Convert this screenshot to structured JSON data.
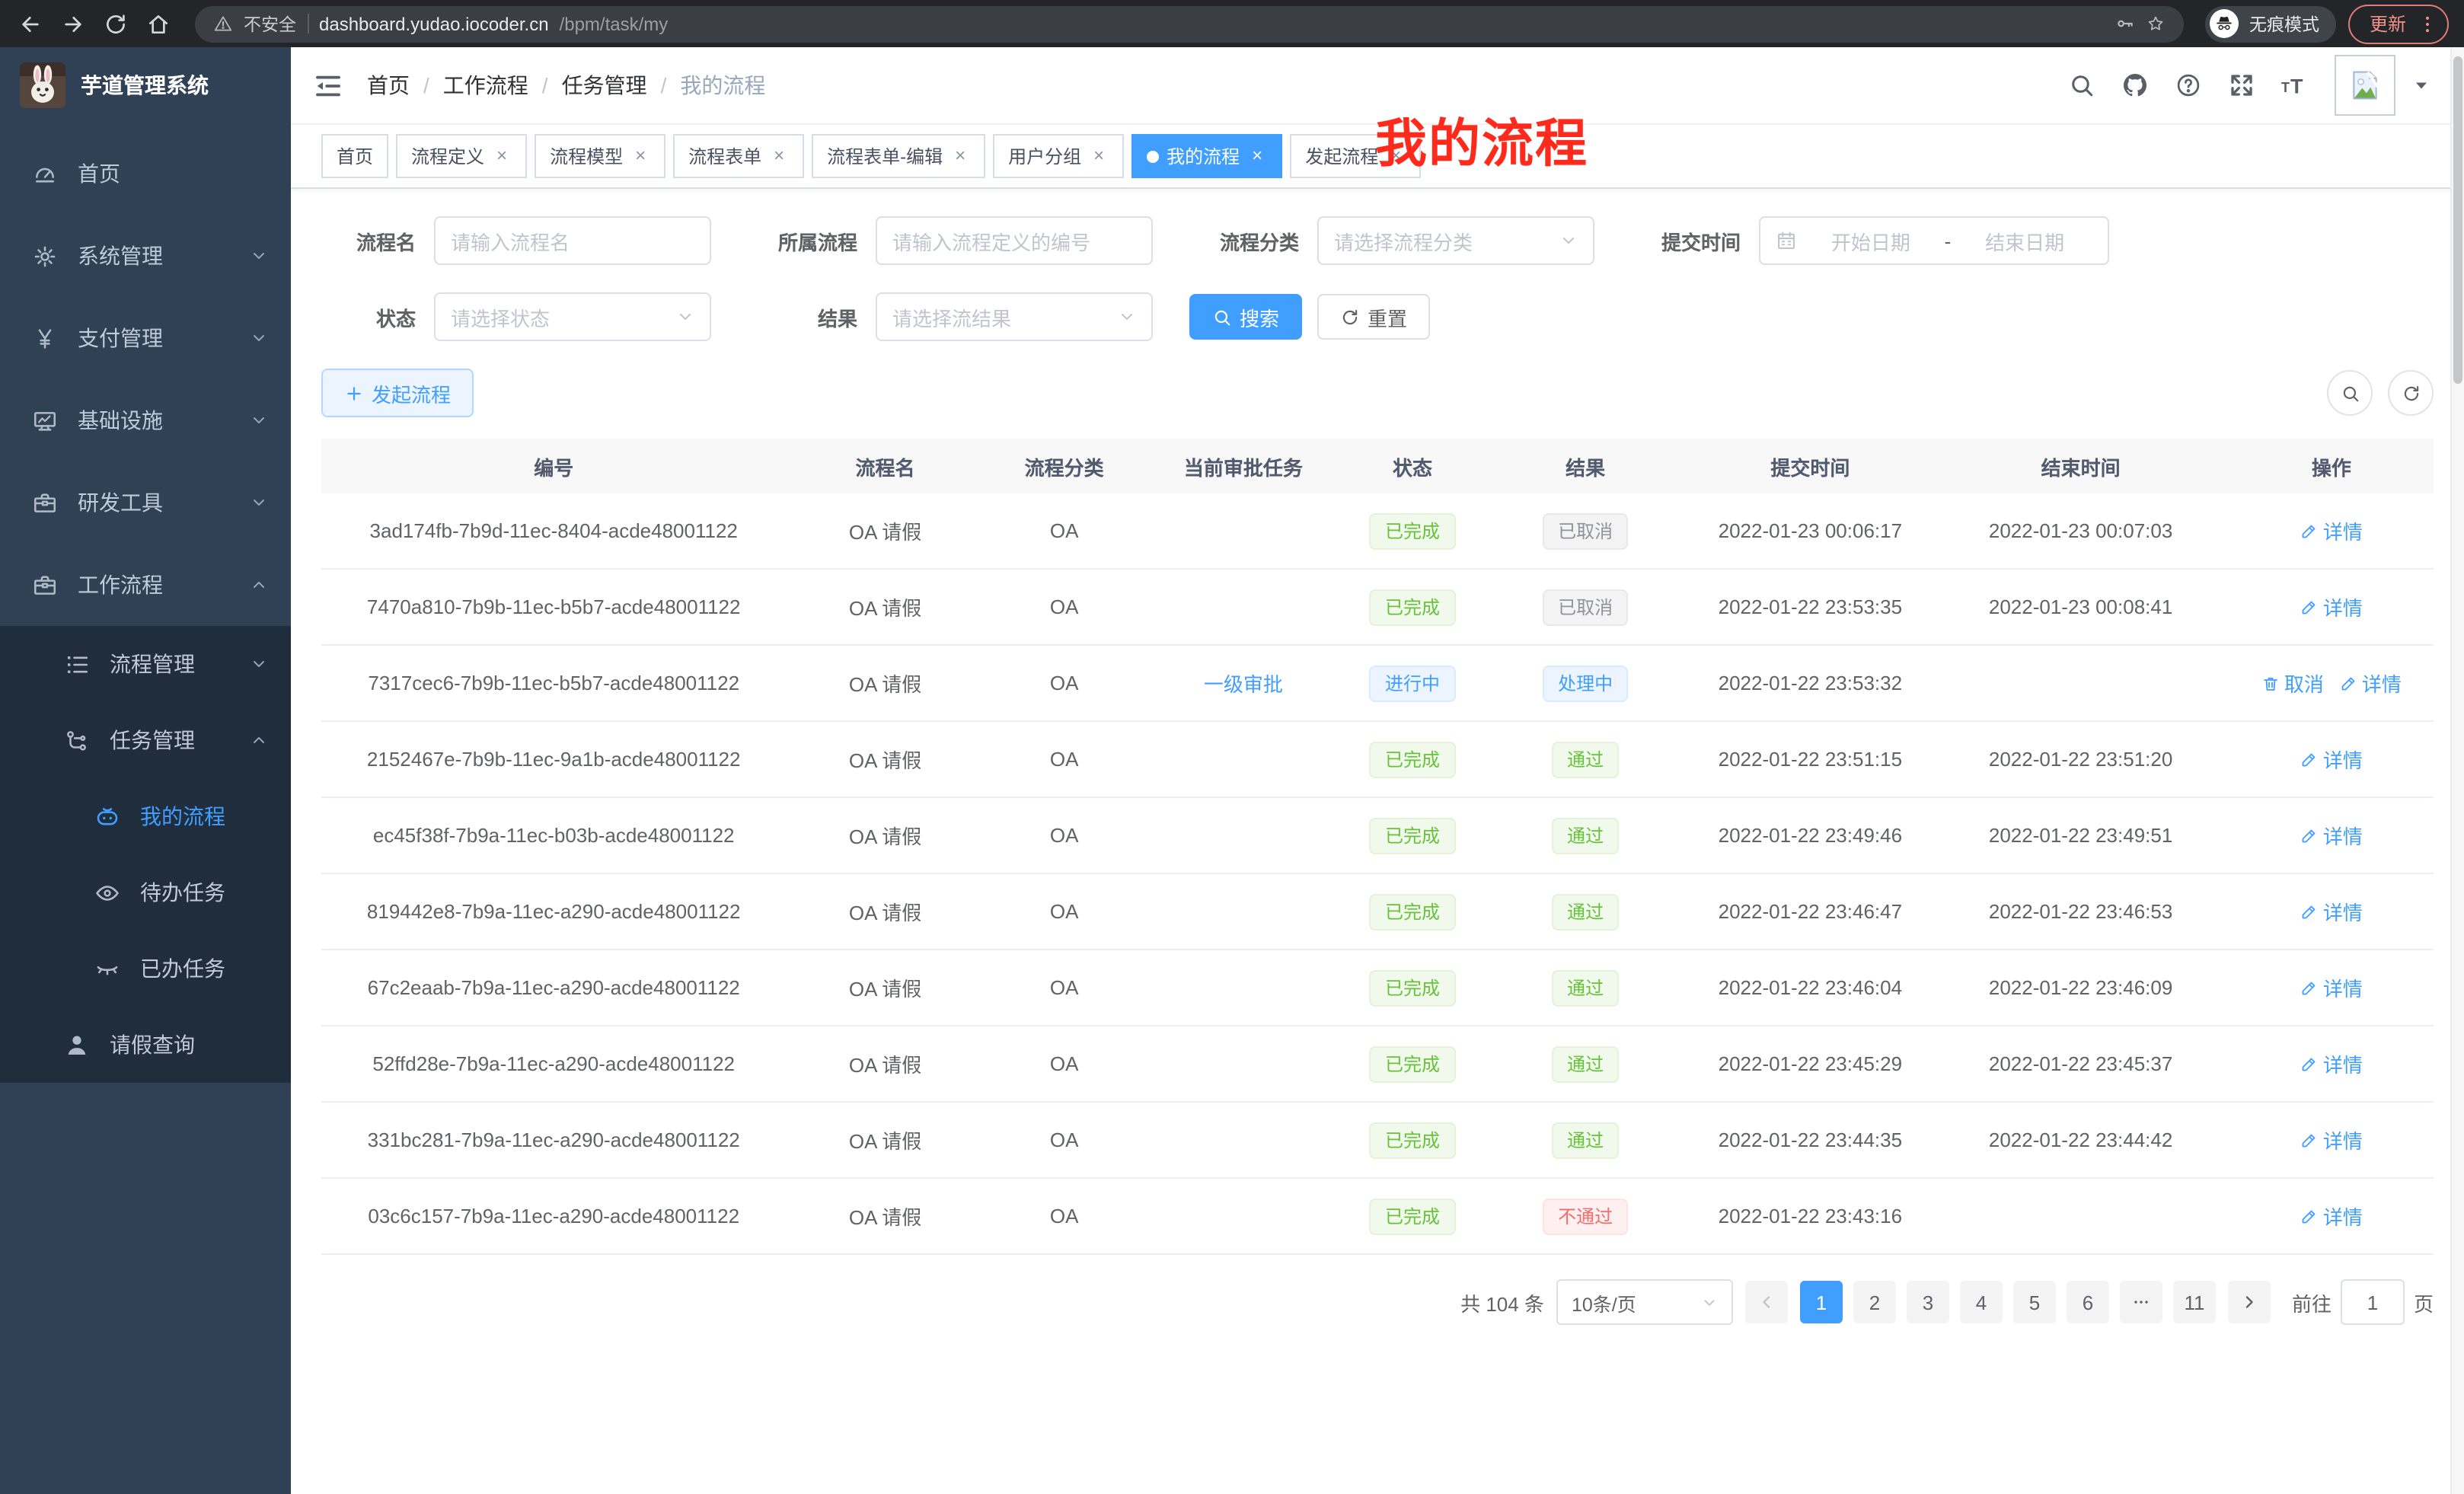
{
  "colors": {
    "accent": "#409eff",
    "success": "#67c23a",
    "danger": "#f56c6c",
    "info_gray": "#909399",
    "sidebar_bg": "#304156",
    "submenu_bg": "#1f2d3d",
    "active_tab_bg": "#409eff",
    "overlay_red": "#fe2b1d"
  },
  "browser": {
    "security_label": "不安全",
    "url_host": "dashboard.yudao.iocoder.cn",
    "url_path": "/bpm/task/my",
    "incognito_label": "无痕模式",
    "update_label": "更新"
  },
  "sidebar": {
    "logo_title": "芋道管理系统",
    "menu": [
      {
        "key": "home",
        "label": "首页",
        "icon": "dashboard-icon",
        "level": 1
      },
      {
        "key": "system",
        "label": "系统管理",
        "icon": "gear-icon",
        "level": 1,
        "arrow": "down"
      },
      {
        "key": "payment",
        "label": "支付管理",
        "icon": "yen-icon",
        "level": 1,
        "arrow": "down"
      },
      {
        "key": "infrastructure",
        "label": "基础设施",
        "icon": "monitor-icon",
        "level": 1,
        "arrow": "down"
      },
      {
        "key": "dev-tools",
        "label": "研发工具",
        "icon": "briefcase-icon",
        "level": 1,
        "arrow": "down"
      },
      {
        "key": "workflow",
        "label": "工作流程",
        "icon": "briefcase-icon",
        "level": 1,
        "arrow": "up"
      },
      {
        "key": "process-mgmt",
        "label": "流程管理",
        "icon": "list-icon",
        "level": 2,
        "arrow": "down",
        "dark": true
      },
      {
        "key": "task-mgmt",
        "label": "任务管理",
        "icon": "branch-icon",
        "level": 2,
        "arrow": "up",
        "dark": true
      },
      {
        "key": "my-process",
        "label": "我的流程",
        "icon": "robot-icon",
        "level": 3,
        "dark": true,
        "active": true
      },
      {
        "key": "todo-tasks",
        "label": "待办任务",
        "icon": "eye-icon",
        "level": 3,
        "dark": true
      },
      {
        "key": "done-tasks",
        "label": "已办任务",
        "icon": "eye-closed-icon",
        "level": 3,
        "dark": true
      },
      {
        "key": "leave-query",
        "label": "请假查询",
        "icon": "user-icon",
        "level": 2,
        "dark": true
      }
    ]
  },
  "header": {
    "breadcrumb": [
      "首页",
      "工作流程",
      "任务管理",
      "我的流程"
    ],
    "overlay_title": "我的流程"
  },
  "tabs": [
    {
      "key": "home",
      "label": "首页",
      "closable": false
    },
    {
      "key": "process-definition",
      "label": "流程定义",
      "closable": true
    },
    {
      "key": "process-model",
      "label": "流程模型",
      "closable": true
    },
    {
      "key": "process-form",
      "label": "流程表单",
      "closable": true
    },
    {
      "key": "process-form-edit",
      "label": "流程表单-编辑",
      "closable": true
    },
    {
      "key": "user-group",
      "label": "用户分组",
      "closable": true
    },
    {
      "key": "my-process",
      "label": "我的流程",
      "closable": true,
      "active": true
    },
    {
      "key": "start-process",
      "label": "发起流程",
      "closable": true
    }
  ],
  "filters": {
    "process_name": {
      "label": "流程名",
      "placeholder": "请输入流程名"
    },
    "process_def": {
      "label": "所属流程",
      "placeholder": "请输入流程定义的编号"
    },
    "category": {
      "label": "流程分类",
      "placeholder": "请选择流程分类"
    },
    "submit_time": {
      "label": "提交时间",
      "start_placeholder": "开始日期",
      "separator": "-",
      "end_placeholder": "结束日期"
    },
    "status": {
      "label": "状态",
      "placeholder": "请选择状态"
    },
    "result": {
      "label": "结果",
      "placeholder": "请选择流结果"
    },
    "search_label": "搜索",
    "reset_label": "重置"
  },
  "toolbar": {
    "create_label": "发起流程"
  },
  "table": {
    "columns": [
      "编号",
      "流程名",
      "流程分类",
      "当前审批任务",
      "状态",
      "结果",
      "提交时间",
      "结束时间",
      "操作"
    ],
    "action_labels": {
      "detail": "详情",
      "cancel": "取消"
    },
    "rows": [
      {
        "id": "3ad174fb-7b9d-11ec-8404-acde48001122",
        "name": "OA 请假",
        "category": "OA",
        "task": "",
        "status": {
          "label": "已完成",
          "type": "success"
        },
        "result": {
          "label": "已取消",
          "type": "info"
        },
        "submit": "2022-01-23 00:06:17",
        "end": "2022-01-23 00:07:03",
        "actions": [
          "detail"
        ]
      },
      {
        "id": "7470a810-7b9b-11ec-b5b7-acde48001122",
        "name": "OA 请假",
        "category": "OA",
        "task": "",
        "status": {
          "label": "已完成",
          "type": "success"
        },
        "result": {
          "label": "已取消",
          "type": "info"
        },
        "submit": "2022-01-22 23:53:35",
        "end": "2022-01-23 00:08:41",
        "actions": [
          "detail"
        ]
      },
      {
        "id": "7317cec6-7b9b-11ec-b5b7-acde48001122",
        "name": "OA 请假",
        "category": "OA",
        "task": "一级审批",
        "status": {
          "label": "进行中",
          "type": "primary"
        },
        "result": {
          "label": "处理中",
          "type": "primary"
        },
        "submit": "2022-01-22 23:53:32",
        "end": "",
        "actions": [
          "cancel",
          "detail"
        ]
      },
      {
        "id": "2152467e-7b9b-11ec-9a1b-acde48001122",
        "name": "OA 请假",
        "category": "OA",
        "task": "",
        "status": {
          "label": "已完成",
          "type": "success"
        },
        "result": {
          "label": "通过",
          "type": "success"
        },
        "submit": "2022-01-22 23:51:15",
        "end": "2022-01-22 23:51:20",
        "actions": [
          "detail"
        ]
      },
      {
        "id": "ec45f38f-7b9a-11ec-b03b-acde48001122",
        "name": "OA 请假",
        "category": "OA",
        "task": "",
        "status": {
          "label": "已完成",
          "type": "success"
        },
        "result": {
          "label": "通过",
          "type": "success"
        },
        "submit": "2022-01-22 23:49:46",
        "end": "2022-01-22 23:49:51",
        "actions": [
          "detail"
        ]
      },
      {
        "id": "819442e8-7b9a-11ec-a290-acde48001122",
        "name": "OA 请假",
        "category": "OA",
        "task": "",
        "status": {
          "label": "已完成",
          "type": "success"
        },
        "result": {
          "label": "通过",
          "type": "success"
        },
        "submit": "2022-01-22 23:46:47",
        "end": "2022-01-22 23:46:53",
        "actions": [
          "detail"
        ]
      },
      {
        "id": "67c2eaab-7b9a-11ec-a290-acde48001122",
        "name": "OA 请假",
        "category": "OA",
        "task": "",
        "status": {
          "label": "已完成",
          "type": "success"
        },
        "result": {
          "label": "通过",
          "type": "success"
        },
        "submit": "2022-01-22 23:46:04",
        "end": "2022-01-22 23:46:09",
        "actions": [
          "detail"
        ]
      },
      {
        "id": "52ffd28e-7b9a-11ec-a290-acde48001122",
        "name": "OA 请假",
        "category": "OA",
        "task": "",
        "status": {
          "label": "已完成",
          "type": "success"
        },
        "result": {
          "label": "通过",
          "type": "success"
        },
        "submit": "2022-01-22 23:45:29",
        "end": "2022-01-22 23:45:37",
        "actions": [
          "detail"
        ]
      },
      {
        "id": "331bc281-7b9a-11ec-a290-acde48001122",
        "name": "OA 请假",
        "category": "OA",
        "task": "",
        "status": {
          "label": "已完成",
          "type": "success"
        },
        "result": {
          "label": "通过",
          "type": "success"
        },
        "submit": "2022-01-22 23:44:35",
        "end": "2022-01-22 23:44:42",
        "actions": [
          "detail"
        ]
      },
      {
        "id": "03c6c157-7b9a-11ec-a290-acde48001122",
        "name": "OA 请假",
        "category": "OA",
        "task": "",
        "status": {
          "label": "已完成",
          "type": "success"
        },
        "result": {
          "label": "不通过",
          "type": "danger"
        },
        "submit": "2022-01-22 23:43:16",
        "end": "",
        "actions": [
          "detail"
        ]
      }
    ]
  },
  "pagination": {
    "total_label": "共 104 条",
    "page_size": "10条/页",
    "pages": [
      "1",
      "2",
      "3",
      "4",
      "5",
      "6",
      "ellipsis",
      "11"
    ],
    "active_page": "1",
    "goto_label": "前往",
    "goto_value": "1",
    "goto_suffix": "页"
  }
}
